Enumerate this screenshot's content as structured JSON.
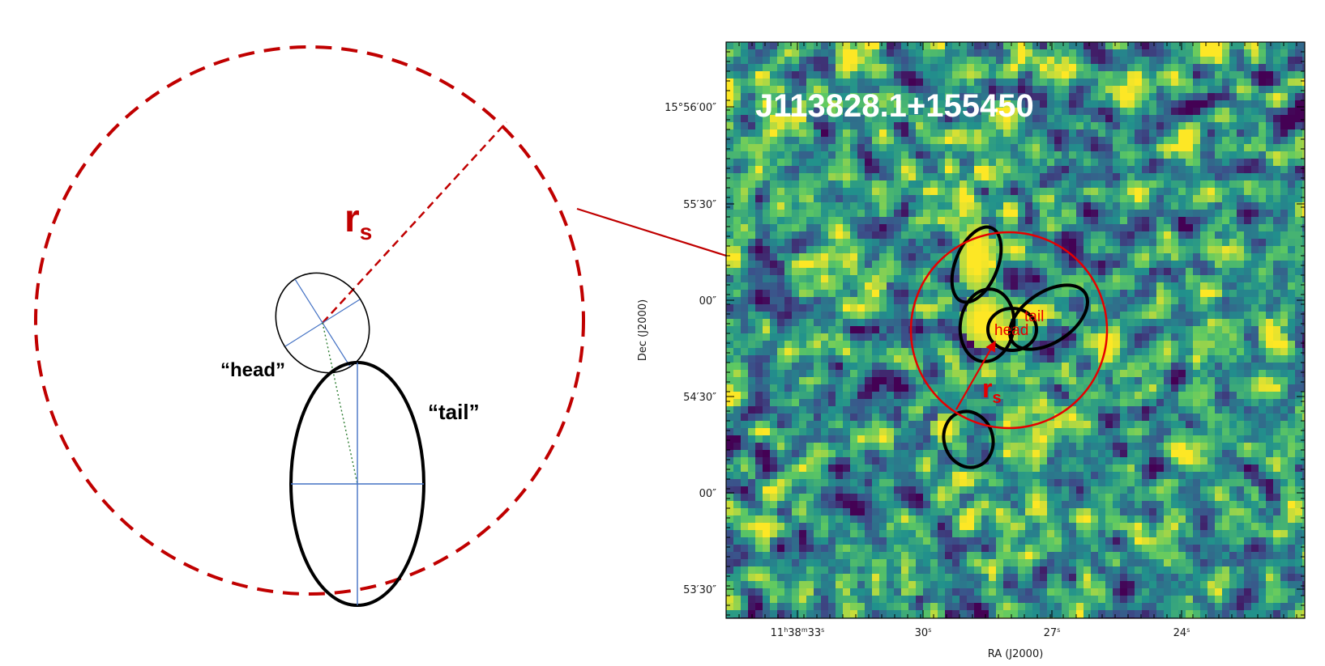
{
  "schematic": {
    "head_label": "“head”",
    "tail_label": "“tail”",
    "radius_symbol": "r",
    "radius_subscript": "s"
  },
  "sky_image": {
    "source_name": "J113828.1+155450",
    "head_label": "head",
    "tail_label": "tail",
    "radius_symbol": "r",
    "radius_subscript": "s",
    "x_axis_label": "RA (J2000)",
    "y_axis_label": "Dec (J2000)",
    "ra_ticks": [
      {
        "h": "11",
        "m": "38",
        "s": "33",
        "full": true
      },
      {
        "s": "30"
      },
      {
        "s": "27"
      },
      {
        "s": "24"
      }
    ],
    "dec_ticks": [
      {
        "text": "15°56′00″"
      },
      {
        "text": "55′30″"
      },
      {
        "text": "00″"
      },
      {
        "text": "54′30″"
      },
      {
        "text": "00″"
      },
      {
        "text": "53′30″"
      }
    ],
    "colors": {
      "low": "#440154",
      "mid": "#21918c",
      "high": "#fde725",
      "overlay_red": "#e60000"
    }
  },
  "colors": {
    "dashed_circle": "#c00000",
    "guide_lines": "#4472c4",
    "green_dotted": "#2e7d32"
  }
}
